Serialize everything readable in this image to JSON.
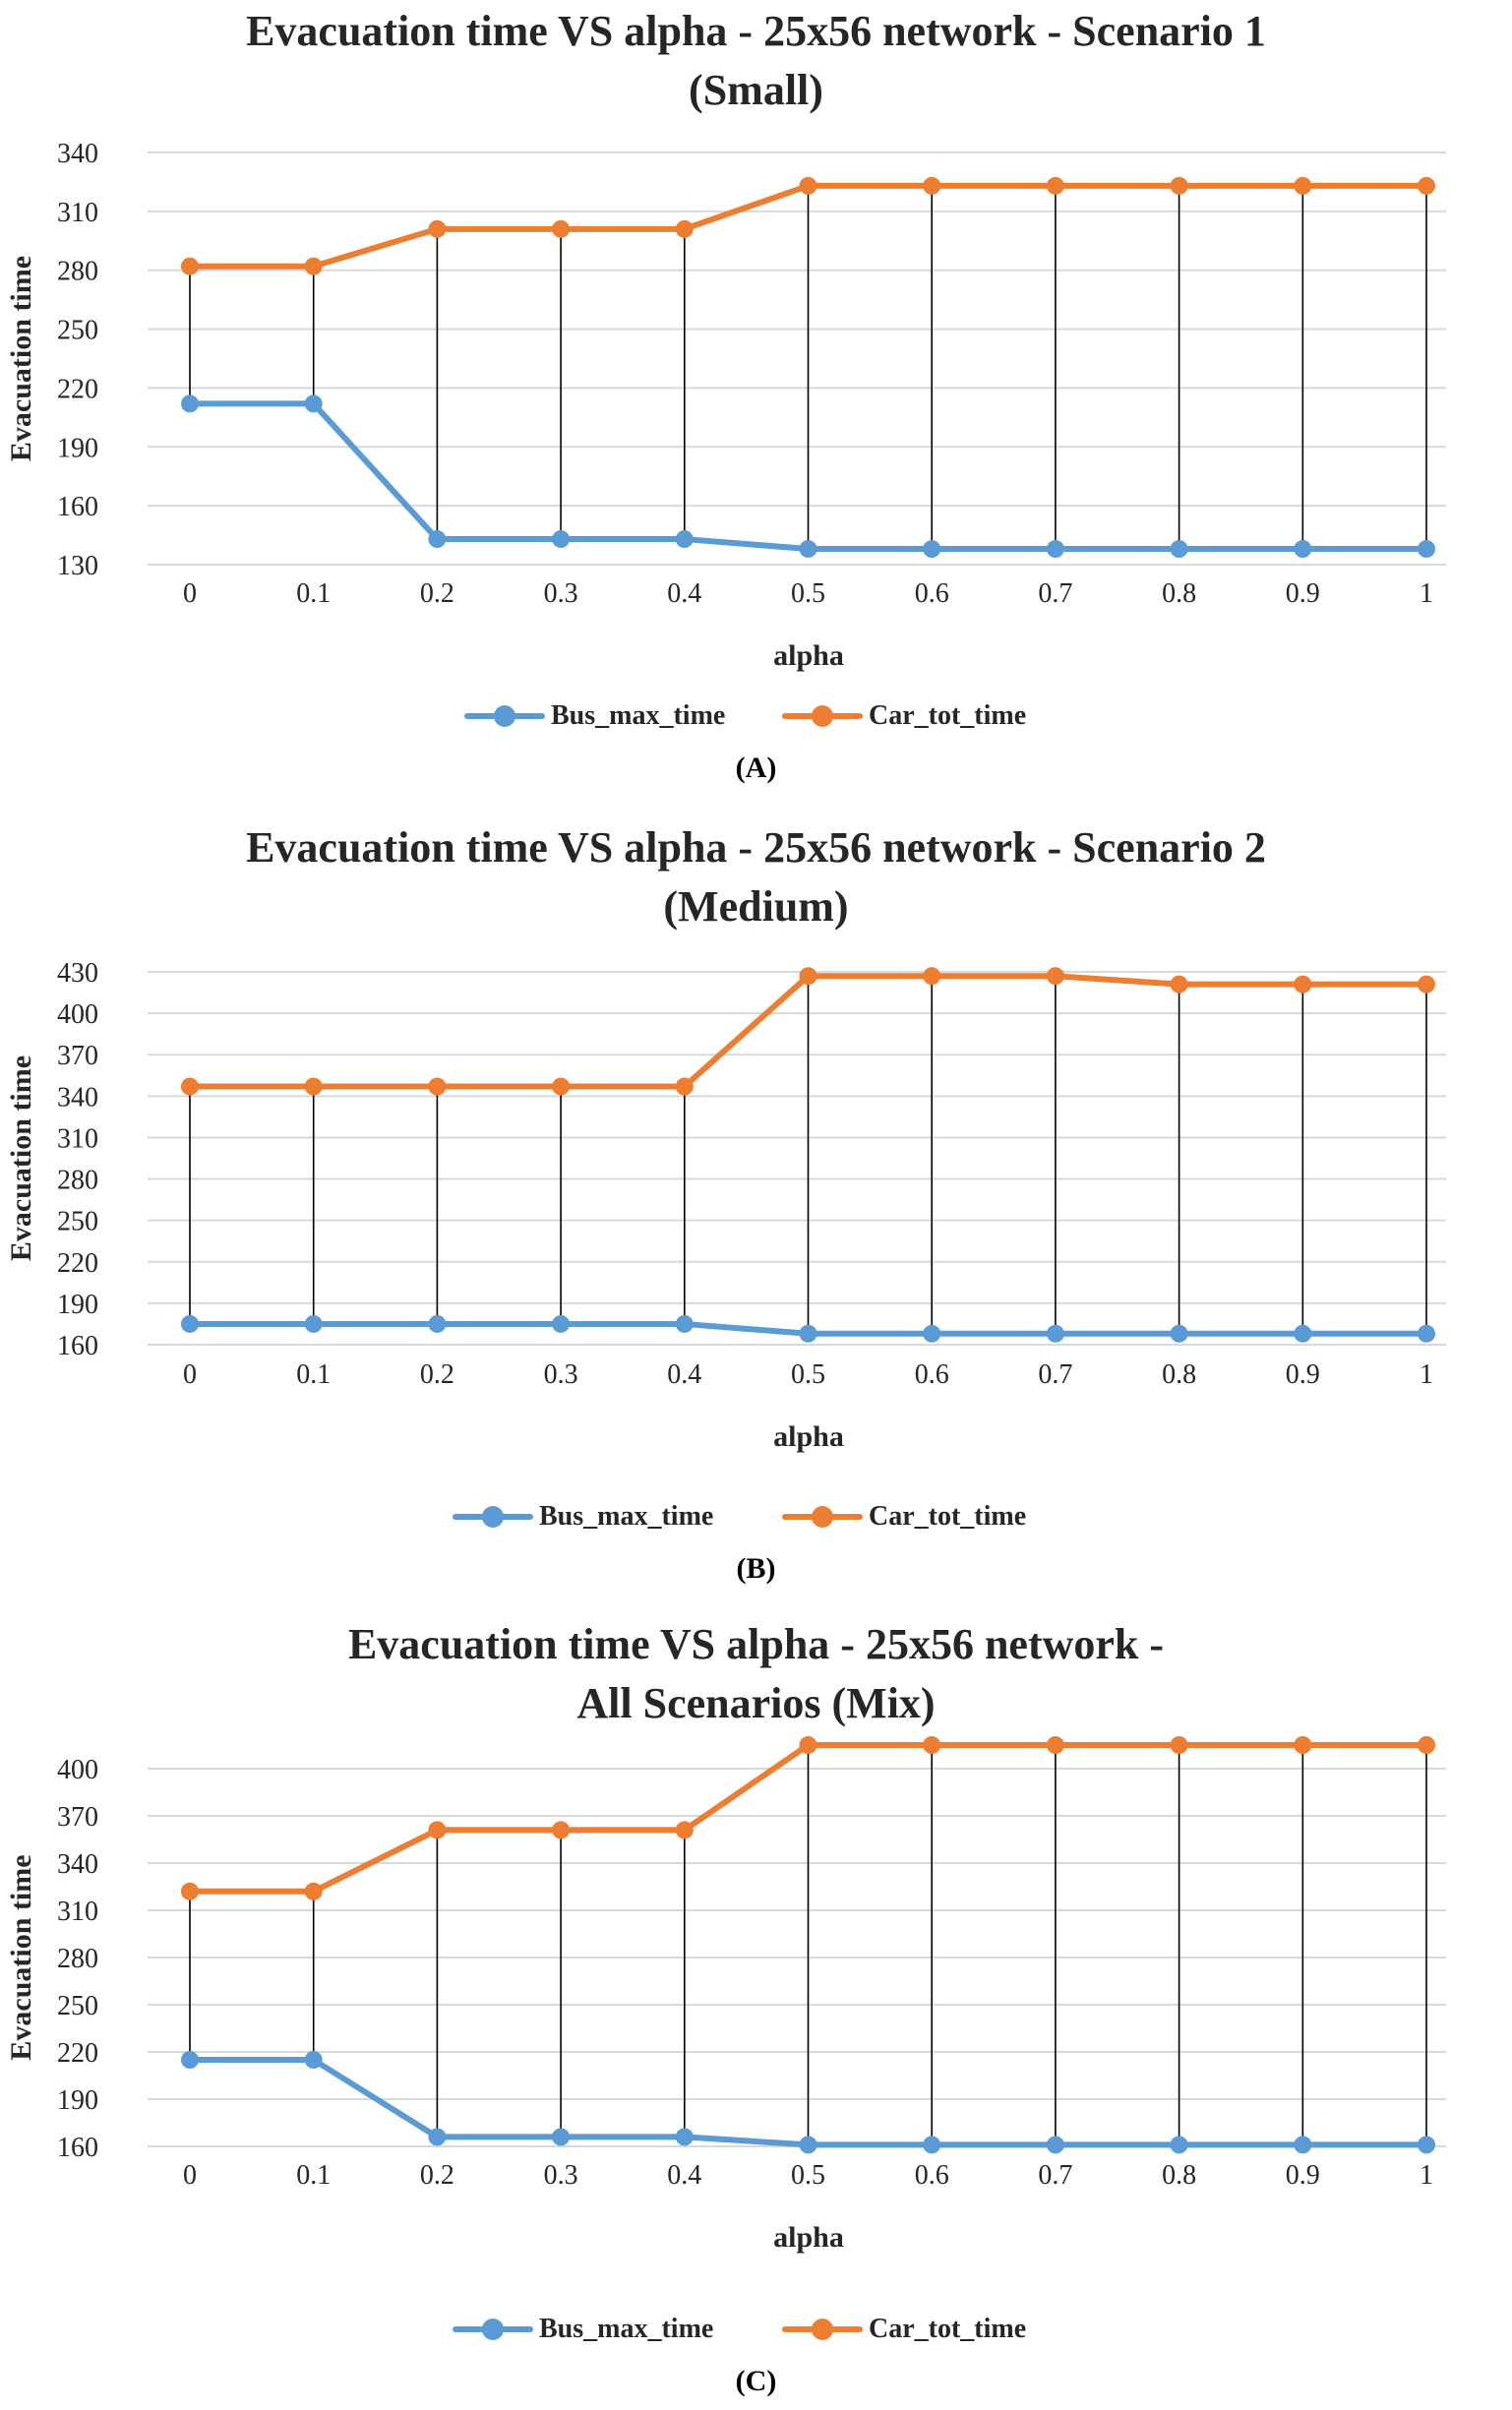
{
  "colors": {
    "bus": "#5b9bd5",
    "car": "#ed7d31",
    "grid": "#d9d9d9",
    "stem": "#000000"
  },
  "chart_data": [
    {
      "type": "line",
      "title_line1": "Evacuation time VS alpha - 25x56 network - Scenario 1",
      "title_line2": "(Small)",
      "xlabel": "alpha",
      "ylabel": "Evacuation time",
      "categories": [
        "0",
        "0.1",
        "0.2",
        "0.3",
        "0.4",
        "0.5",
        "0.6",
        "0.7",
        "0.8",
        "0.9",
        "1"
      ],
      "yticks": [
        130,
        160,
        190,
        220,
        250,
        280,
        310,
        340
      ],
      "ylim": [
        130,
        340
      ],
      "grid": true,
      "legend": "bottom",
      "series": [
        {
          "name": "Bus_max_time",
          "values": [
            212,
            212,
            143,
            143,
            143,
            138,
            138,
            138,
            138,
            138,
            138
          ]
        },
        {
          "name": "Car_tot_time",
          "values": [
            282,
            282,
            301,
            301,
            301,
            323,
            323,
            323,
            323,
            323,
            323
          ]
        }
      ],
      "caption": "(A)"
    },
    {
      "type": "line",
      "title_line1": "Evacuation time VS alpha - 25x56 network - Scenario 2",
      "title_line2": "(Medium)",
      "xlabel": "alpha",
      "ylabel": "Evacuation time",
      "categories": [
        "0",
        "0.1",
        "0.2",
        "0.3",
        "0.4",
        "0.5",
        "0.6",
        "0.7",
        "0.8",
        "0.9",
        "1"
      ],
      "yticks": [
        160,
        190,
        220,
        250,
        280,
        310,
        340,
        370,
        400,
        430
      ],
      "ylim": [
        160,
        430
      ],
      "grid": true,
      "legend": "bottom",
      "series": [
        {
          "name": "Bus_max_time",
          "values": [
            175,
            175,
            175,
            175,
            175,
            168,
            168,
            168,
            168,
            168,
            168
          ]
        },
        {
          "name": "Car_tot_time",
          "values": [
            347,
            347,
            347,
            347,
            347,
            427,
            427,
            427,
            421,
            421,
            421
          ]
        }
      ],
      "caption": "(B)"
    },
    {
      "type": "line",
      "title_line1": "Evacuation time VS alpha - 25x56 network -",
      "title_line2": "All Scenarios (Mix)",
      "xlabel": "alpha",
      "ylabel": "Evacuation time",
      "categories": [
        "0",
        "0.1",
        "0.2",
        "0.3",
        "0.4",
        "0.5",
        "0.6",
        "0.7",
        "0.8",
        "0.9",
        "1"
      ],
      "yticks": [
        160,
        190,
        220,
        250,
        280,
        310,
        340,
        370,
        400
      ],
      "ylim": [
        160,
        400
      ],
      "grid": true,
      "legend": "bottom",
      "series": [
        {
          "name": "Bus_max_time",
          "values": [
            215,
            215,
            166,
            166,
            166,
            161,
            161,
            161,
            161,
            161,
            161
          ]
        },
        {
          "name": "Car_tot_time",
          "values": [
            322,
            322,
            361,
            361,
            361,
            415,
            415,
            415,
            415,
            415,
            415
          ]
        }
      ],
      "caption": "(C)"
    }
  ]
}
